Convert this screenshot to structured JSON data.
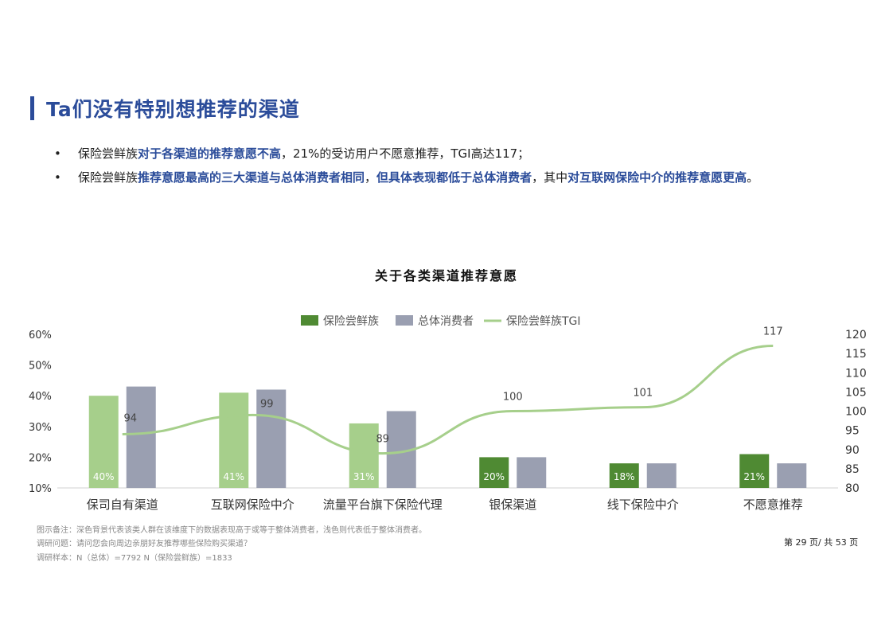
{
  "header": {
    "title": "Ta们没有特别想推荐的渠道"
  },
  "bullets": [
    {
      "segments": [
        {
          "text": "保险尝鲜族",
          "hl": false
        },
        {
          "text": "对于各渠道的推荐意愿不高",
          "hl": true
        },
        {
          "text": "，21%的受访用户不愿意推荐，TGI高达117；",
          "hl": false
        }
      ]
    },
    {
      "segments": [
        {
          "text": "保险尝鲜族",
          "hl": false
        },
        {
          "text": "推荐意愿最高的三大渠道与总体消费者相同",
          "hl": true
        },
        {
          "text": "，",
          "hl": false
        },
        {
          "text": "但具体",
          "hl": true
        },
        {
          "text": "表现都低于总体消费者",
          "hl": true
        },
        {
          "text": "，其中",
          "hl": false
        },
        {
          "text": "对互联网保险中介的推荐意愿更高",
          "hl": true
        },
        {
          "text": "。",
          "hl": false
        }
      ]
    }
  ],
  "chart_data": {
    "type": "bar",
    "title": "关于各类渠道推荐意愿",
    "categories": [
      "保司自有渠道",
      "互联网保险中介",
      "流量平台旗下保险代理",
      "银保渠道",
      "线下保险中介",
      "不愿意推荐"
    ],
    "series": [
      {
        "name": "保险尝鲜族",
        "kind": "bar",
        "axis": "left",
        "values": [
          40,
          41,
          31,
          20,
          18,
          21
        ],
        "labels": [
          "40%",
          "41%",
          "31%",
          "20%",
          "18%",
          "21%"
        ],
        "dark": [
          false,
          false,
          false,
          true,
          true,
          true
        ]
      },
      {
        "name": "总体消费者",
        "kind": "bar",
        "axis": "left",
        "values": [
          43,
          42,
          35,
          20,
          18,
          18
        ]
      },
      {
        "name": "保险尝鲜族TGI",
        "kind": "line",
        "axis": "right",
        "values": [
          94,
          99,
          89,
          100,
          101,
          117
        ],
        "labels": [
          "94",
          "99",
          "89",
          "100",
          "101",
          "117"
        ]
      }
    ],
    "y_left": {
      "min": 10,
      "max": 60,
      "ticks": [
        "10%",
        "20%",
        "30%",
        "40%",
        "50%",
        "60%"
      ]
    },
    "y_right": {
      "min": 80,
      "max": 120,
      "ticks": [
        "80",
        "85",
        "90",
        "95",
        "100",
        "105",
        "110",
        "115",
        "120"
      ]
    },
    "legend_position": "top",
    "grid": false,
    "colors": {
      "dark_green": "#4f8a33",
      "light_green": "#a6cf8b",
      "gray": "#9a9fb1",
      "tgi_line": "#a6cf8b",
      "title_blue": "#2b4c9a"
    }
  },
  "footer": {
    "note": "图示备注：深色背景代表该类人群在该维度下的数据表现高于或等于整体消费者，浅色则代表低于整体消费者。",
    "question": "调研问题：请问您会向周边亲朋好友推荐哪些保险购买渠道？",
    "sample": "调研样本：N（总体）=7792    N（保险尝鲜族）=1833",
    "page": "第 29 页/ 共 53 页"
  }
}
